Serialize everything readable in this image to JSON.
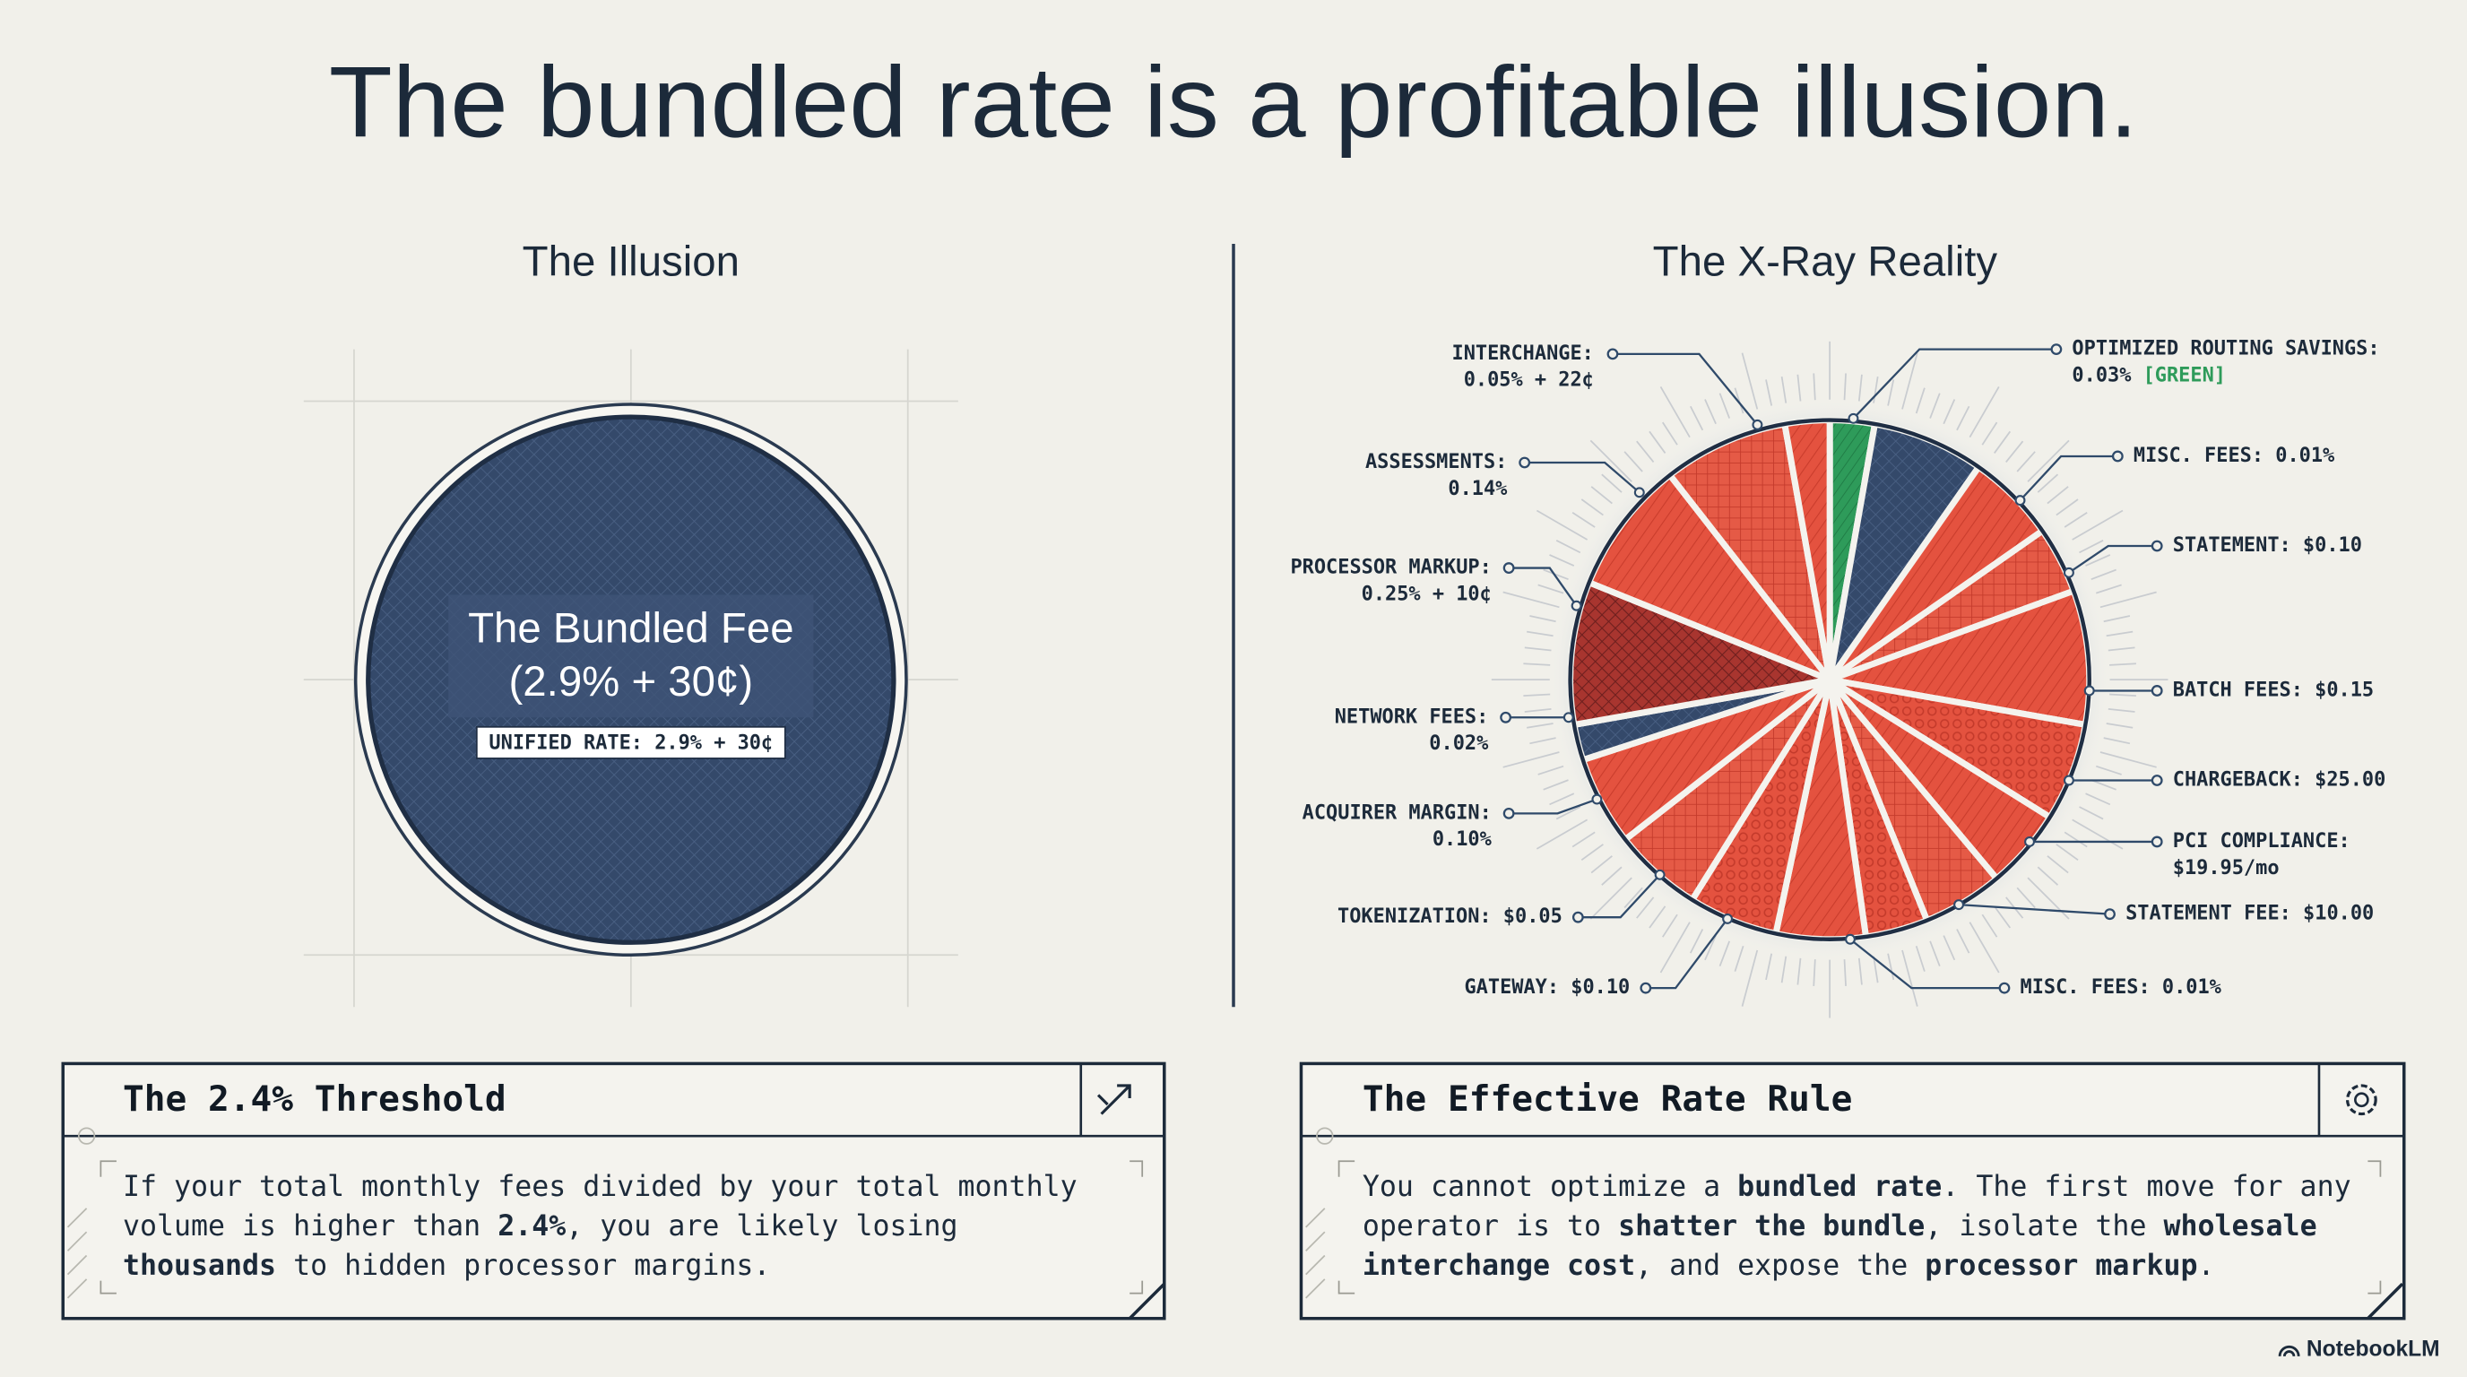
{
  "title": "The bundled rate is a profitable illusion.",
  "left": {
    "heading": "The Illusion",
    "circle_label": "The Bundled Fee",
    "circle_sublabel": "(2.9% + 30¢)",
    "badge": "UNIFIED RATE: 2.9% + 30¢"
  },
  "right": {
    "heading": "The X-Ray Reality",
    "callouts": [
      {
        "lines": [
          "INTERCHANGE:",
          "0.05% + 22¢"
        ]
      },
      {
        "lines": [
          "ASSESSMENTS:",
          "0.14%"
        ]
      },
      {
        "lines": [
          "PROCESSOR MARKUP:",
          "0.25% + 10¢"
        ]
      },
      {
        "lines": [
          "NETWORK FEES:",
          "0.02%"
        ]
      },
      {
        "lines": [
          "ACQUIRER MARGIN:",
          "0.10%"
        ]
      },
      {
        "lines": [
          "TOKENIZATION: $0.05"
        ]
      },
      {
        "lines": [
          "GATEWAY: $0.10"
        ]
      },
      {
        "lines": [
          "OPTIMIZED ROUTING SAVINGS:",
          "0.03%"
        ],
        "tag": "[GREEN]"
      },
      {
        "lines": [
          "MISC. FEES: 0.01%"
        ]
      },
      {
        "lines": [
          "STATEMENT: $0.10"
        ]
      },
      {
        "lines": [
          "BATCH FEES: $0.15"
        ]
      },
      {
        "lines": [
          "CHARGEBACK: $25.00"
        ]
      },
      {
        "lines": [
          "PCI COMPLIANCE:",
          "$19.95/mo"
        ]
      },
      {
        "lines": [
          "STATEMENT FEE: $10.00"
        ]
      },
      {
        "lines": [
          "MISC. FEES: 0.01%"
        ]
      }
    ]
  },
  "cards": [
    {
      "title": "The 2.4% Threshold",
      "body": [
        [
          {
            "text": "If your total monthly fees divided by your total monthly"
          }
        ],
        [
          {
            "text": "volume is higher than "
          },
          {
            "text": "2.4%",
            "bold": true
          },
          {
            "text": ", you are likely losing"
          }
        ],
        [
          {
            "text": "thousands",
            "bold": true
          },
          {
            "text": " to hidden processor margins."
          }
        ]
      ]
    },
    {
      "title": "The Effective Rate Rule",
      "body": [
        [
          {
            "text": "You cannot optimize a "
          },
          {
            "text": "bundled rate",
            "bold": true
          },
          {
            "text": ". The first move for any"
          }
        ],
        [
          {
            "text": "operator is to "
          },
          {
            "text": "shatter the bundle",
            "bold": true
          },
          {
            "text": ", isolate the "
          },
          {
            "text": "wholesale",
            "bold": true
          }
        ],
        [
          {
            "text": "interchange cost",
            "bold": true
          },
          {
            "text": ", and expose the "
          },
          {
            "text": "processor markup",
            "bold": true
          },
          {
            "text": "."
          }
        ]
      ]
    }
  ],
  "footer": "NotebookLM"
}
